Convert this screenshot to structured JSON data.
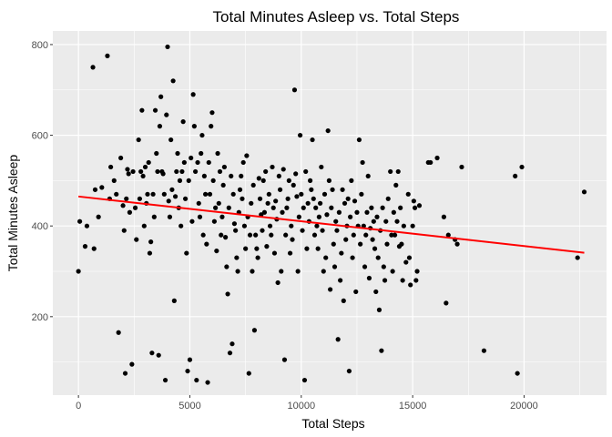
{
  "chart_data": {
    "type": "scatter",
    "title": "Total Minutes Asleep vs. Total Steps",
    "xlabel": "Total Steps",
    "ylabel": "Total Minutes Asleep",
    "xlim": [
      -1150,
      23700
    ],
    "ylim": [
      27,
      830
    ],
    "xticks": [
      0,
      5000,
      10000,
      15000,
      20000
    ],
    "yticks": [
      200,
      400,
      600,
      800
    ],
    "xminor": [
      2500,
      7500,
      12500,
      17500,
      22500
    ],
    "yminor": [
      100,
      300,
      500,
      700
    ],
    "grid": true,
    "background": "#ebebeb",
    "grid_color": "#ffffff",
    "point_color": "#000000",
    "trend": {
      "color": "#ff0000",
      "x": [
        0,
        22700
      ],
      "y": [
        465,
        341
      ]
    },
    "points": [
      [
        0,
        300
      ],
      [
        60,
        410
      ],
      [
        300,
        355
      ],
      [
        380,
        400
      ],
      [
        650,
        750
      ],
      [
        700,
        350
      ],
      [
        750,
        480
      ],
      [
        900,
        420
      ],
      [
        1050,
        485
      ],
      [
        1300,
        775
      ],
      [
        1400,
        460
      ],
      [
        1450,
        530
      ],
      [
        1600,
        500
      ],
      [
        1700,
        470
      ],
      [
        1800,
        165
      ],
      [
        1900,
        550
      ],
      [
        2000,
        445
      ],
      [
        2050,
        390
      ],
      [
        2100,
        75
      ],
      [
        2150,
        460
      ],
      [
        2200,
        525
      ],
      [
        2250,
        515
      ],
      [
        2300,
        430
      ],
      [
        2400,
        95
      ],
      [
        2450,
        520
      ],
      [
        2550,
        440
      ],
      [
        2600,
        370
      ],
      [
        2700,
        590
      ],
      [
        2750,
        460
      ],
      [
        2800,
        520
      ],
      [
        2850,
        655
      ],
      [
        2900,
        510
      ],
      [
        2950,
        400
      ],
      [
        3000,
        530
      ],
      [
        3050,
        450
      ],
      [
        3100,
        470
      ],
      [
        3150,
        540
      ],
      [
        3200,
        340
      ],
      [
        3250,
        365
      ],
      [
        3300,
        120
      ],
      [
        3350,
        470
      ],
      [
        3400,
        420
      ],
      [
        3450,
        655
      ],
      [
        3500,
        560
      ],
      [
        3550,
        520
      ],
      [
        3600,
        115
      ],
      [
        3650,
        620
      ],
      [
        3700,
        685
      ],
      [
        3750,
        520
      ],
      [
        3800,
        515
      ],
      [
        3850,
        470
      ],
      [
        3900,
        60
      ],
      [
        3950,
        645
      ],
      [
        4000,
        795
      ],
      [
        4050,
        455
      ],
      [
        4100,
        420
      ],
      [
        4150,
        590
      ],
      [
        4200,
        480
      ],
      [
        4250,
        720
      ],
      [
        4300,
        235
      ],
      [
        4350,
        465
      ],
      [
        4400,
        520
      ],
      [
        4450,
        560
      ],
      [
        4500,
        440
      ],
      [
        4550,
        500
      ],
      [
        4600,
        400
      ],
      [
        4650,
        520
      ],
      [
        4700,
        630
      ],
      [
        4750,
        540
      ],
      [
        4800,
        460
      ],
      [
        4850,
        340
      ],
      [
        4900,
        80
      ],
      [
        4950,
        500
      ],
      [
        5000,
        105
      ],
      [
        5050,
        550
      ],
      [
        5100,
        410
      ],
      [
        5150,
        690
      ],
      [
        5200,
        620
      ],
      [
        5250,
        520
      ],
      [
        5300,
        60
      ],
      [
        5350,
        540
      ],
      [
        5400,
        450
      ],
      [
        5450,
        420
      ],
      [
        5500,
        560
      ],
      [
        5550,
        600
      ],
      [
        5600,
        380
      ],
      [
        5650,
        510
      ],
      [
        5700,
        470
      ],
      [
        5750,
        360
      ],
      [
        5800,
        55
      ],
      [
        5850,
        540
      ],
      [
        5900,
        470
      ],
      [
        5950,
        620
      ],
      [
        6000,
        650
      ],
      [
        6050,
        500
      ],
      [
        6100,
        410
      ],
      [
        6150,
        440
      ],
      [
        6200,
        345
      ],
      [
        6250,
        560
      ],
      [
        6300,
        450
      ],
      [
        6350,
        520
      ],
      [
        6400,
        380
      ],
      [
        6450,
        420
      ],
      [
        6500,
        490
      ],
      [
        6550,
        530
      ],
      [
        6600,
        375
      ],
      [
        6650,
        310
      ],
      [
        6700,
        250
      ],
      [
        6750,
        440
      ],
      [
        6800,
        120
      ],
      [
        6850,
        510
      ],
      [
        6900,
        140
      ],
      [
        6950,
        470
      ],
      [
        7000,
        405
      ],
      [
        7050,
        390
      ],
      [
        7100,
        330
      ],
      [
        7150,
        300
      ],
      [
        7200,
        430
      ],
      [
        7250,
        480
      ],
      [
        7300,
        510
      ],
      [
        7350,
        460
      ],
      [
        7400,
        540
      ],
      [
        7450,
        400
      ],
      [
        7500,
        350
      ],
      [
        7550,
        555
      ],
      [
        7600,
        420
      ],
      [
        7650,
        75
      ],
      [
        7700,
        380
      ],
      [
        7750,
        450
      ],
      [
        7800,
        300
      ],
      [
        7850,
        490
      ],
      [
        7900,
        170
      ],
      [
        7950,
        380
      ],
      [
        8000,
        350
      ],
      [
        8050,
        330
      ],
      [
        8100,
        505
      ],
      [
        8150,
        460
      ],
      [
        8200,
        425
      ],
      [
        8250,
        390
      ],
      [
        8300,
        500
      ],
      [
        8350,
        430
      ],
      [
        8400,
        520
      ],
      [
        8450,
        355
      ],
      [
        8500,
        450
      ],
      [
        8550,
        470
      ],
      [
        8600,
        400
      ],
      [
        8650,
        380
      ],
      [
        8700,
        530
      ],
      [
        8750,
        440
      ],
      [
        8800,
        340
      ],
      [
        8850,
        455
      ],
      [
        8900,
        415
      ],
      [
        8950,
        275
      ],
      [
        9000,
        510
      ],
      [
        9050,
        480
      ],
      [
        9100,
        300
      ],
      [
        9150,
        430
      ],
      [
        9200,
        525
      ],
      [
        9250,
        105
      ],
      [
        9300,
        380
      ],
      [
        9350,
        440
      ],
      [
        9400,
        460
      ],
      [
        9450,
        500
      ],
      [
        9500,
        340
      ],
      [
        9550,
        400
      ],
      [
        9600,
        370
      ],
      [
        9650,
        490
      ],
      [
        9700,
        700
      ],
      [
        9750,
        515
      ],
      [
        9800,
        465
      ],
      [
        9850,
        300
      ],
      [
        9900,
        420
      ],
      [
        9950,
        600
      ],
      [
        10000,
        470
      ],
      [
        10050,
        390
      ],
      [
        10100,
        440
      ],
      [
        10150,
        60
      ],
      [
        10200,
        520
      ],
      [
        10250,
        350
      ],
      [
        10300,
        450
      ],
      [
        10350,
        410
      ],
      [
        10400,
        500
      ],
      [
        10450,
        480
      ],
      [
        10500,
        590
      ],
      [
        10550,
        460
      ],
      [
        10600,
        380
      ],
      [
        10650,
        440
      ],
      [
        10700,
        400
      ],
      [
        10750,
        350
      ],
      [
        10800,
        420
      ],
      [
        10850,
        450
      ],
      [
        10900,
        530
      ],
      [
        10950,
        390
      ],
      [
        11000,
        300
      ],
      [
        11050,
        470
      ],
      [
        11100,
        330
      ],
      [
        11150,
        425
      ],
      [
        11200,
        610
      ],
      [
        11250,
        500
      ],
      [
        11300,
        260
      ],
      [
        11350,
        440
      ],
      [
        11400,
        480
      ],
      [
        11450,
        360
      ],
      [
        11500,
        310
      ],
      [
        11550,
        410
      ],
      [
        11600,
        390
      ],
      [
        11650,
        150
      ],
      [
        11700,
        430
      ],
      [
        11750,
        280
      ],
      [
        11800,
        340
      ],
      [
        11850,
        480
      ],
      [
        11900,
        235
      ],
      [
        11950,
        450
      ],
      [
        12000,
        370
      ],
      [
        12050,
        400
      ],
      [
        12100,
        460
      ],
      [
        12150,
        80
      ],
      [
        12200,
        420
      ],
      [
        12250,
        500
      ],
      [
        12300,
        330
      ],
      [
        12350,
        380
      ],
      [
        12400,
        455
      ],
      [
        12450,
        255
      ],
      [
        12500,
        430
      ],
      [
        12550,
        400
      ],
      [
        12600,
        590
      ],
      [
        12650,
        360
      ],
      [
        12700,
        470
      ],
      [
        12750,
        540
      ],
      [
        12800,
        400
      ],
      [
        12850,
        310
      ],
      [
        12900,
        380
      ],
      [
        12950,
        430
      ],
      [
        13000,
        510
      ],
      [
        13050,
        285
      ],
      [
        13100,
        395
      ],
      [
        13150,
        440
      ],
      [
        13200,
        370
      ],
      [
        13250,
        410
      ],
      [
        13300,
        350
      ],
      [
        13350,
        255
      ],
      [
        13400,
        420
      ],
      [
        13450,
        330
      ],
      [
        13500,
        215
      ],
      [
        13550,
        390
      ],
      [
        13600,
        125
      ],
      [
        13650,
        440
      ],
      [
        13700,
        310
      ],
      [
        13750,
        280
      ],
      [
        13800,
        410
      ],
      [
        13850,
        360
      ],
      [
        13900,
        460
      ],
      [
        14000,
        520
      ],
      [
        14050,
        380
      ],
      [
        14100,
        300
      ],
      [
        14150,
        430
      ],
      [
        14200,
        380
      ],
      [
        14250,
        490
      ],
      [
        14300,
        410
      ],
      [
        14350,
        520
      ],
      [
        14400,
        355
      ],
      [
        14450,
        440
      ],
      [
        14500,
        360
      ],
      [
        14550,
        280
      ],
      [
        14600,
        400
      ],
      [
        14700,
        320
      ],
      [
        14800,
        470
      ],
      [
        14850,
        330
      ],
      [
        14900,
        270
      ],
      [
        15000,
        400
      ],
      [
        15050,
        455
      ],
      [
        15100,
        440
      ],
      [
        15150,
        280
      ],
      [
        15200,
        300
      ],
      [
        15300,
        445
      ],
      [
        15700,
        540
      ],
      [
        15800,
        540
      ],
      [
        16100,
        550
      ],
      [
        16400,
        420
      ],
      [
        16500,
        230
      ],
      [
        16600,
        380
      ],
      [
        16900,
        370
      ],
      [
        17000,
        360
      ],
      [
        17200,
        530
      ],
      [
        18200,
        125
      ],
      [
        19600,
        510
      ],
      [
        19700,
        75
      ],
      [
        19900,
        530
      ],
      [
        22400,
        330
      ],
      [
        22700,
        475
      ]
    ]
  }
}
